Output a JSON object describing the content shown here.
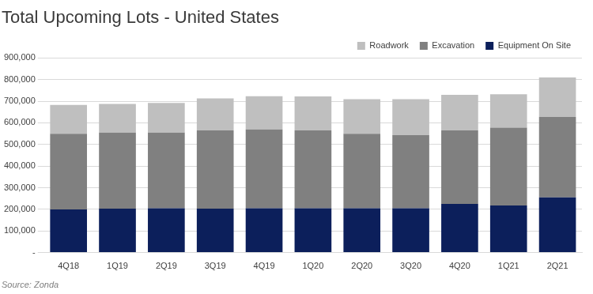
{
  "chart_data": {
    "type": "bar",
    "title": "Total Upcoming Lots - United States",
    "source": "Source: Zonda",
    "categories": [
      "4Q18",
      "1Q19",
      "2Q19",
      "3Q19",
      "4Q19",
      "1Q20",
      "2Q20",
      "3Q20",
      "4Q20",
      "1Q21",
      "2Q21"
    ],
    "series": [
      {
        "name": "Equipment On Site",
        "color": "#0c1f5b",
        "values": [
          200000,
          203000,
          205000,
          203000,
          205000,
          205000,
          205000,
          205000,
          225000,
          218000,
          255000
        ]
      },
      {
        "name": "Excavation",
        "color": "#808080",
        "values": [
          350000,
          352000,
          350000,
          362000,
          365000,
          360000,
          345000,
          338000,
          340000,
          360000,
          372000
        ]
      },
      {
        "name": "Roadwork",
        "color": "#bfbfbf",
        "values": [
          133000,
          133000,
          137000,
          148000,
          153000,
          157000,
          160000,
          167000,
          165000,
          154000,
          183000
        ]
      }
    ],
    "stacked": true,
    "grid": true,
    "legend": "top-right",
    "ylim": [
      0,
      900000
    ],
    "yticks": [
      {
        "value": 0,
        "label": "-"
      },
      {
        "value": 100000,
        "label": "100,000"
      },
      {
        "value": 200000,
        "label": "200,000"
      },
      {
        "value": 300000,
        "label": "300,000"
      },
      {
        "value": 400000,
        "label": "400,000"
      },
      {
        "value": 500000,
        "label": "500,000"
      },
      {
        "value": 600000,
        "label": "600,000"
      },
      {
        "value": 700000,
        "label": "700,000"
      },
      {
        "value": 800000,
        "label": "800,000"
      },
      {
        "value": 900000,
        "label": "900,000"
      }
    ]
  }
}
